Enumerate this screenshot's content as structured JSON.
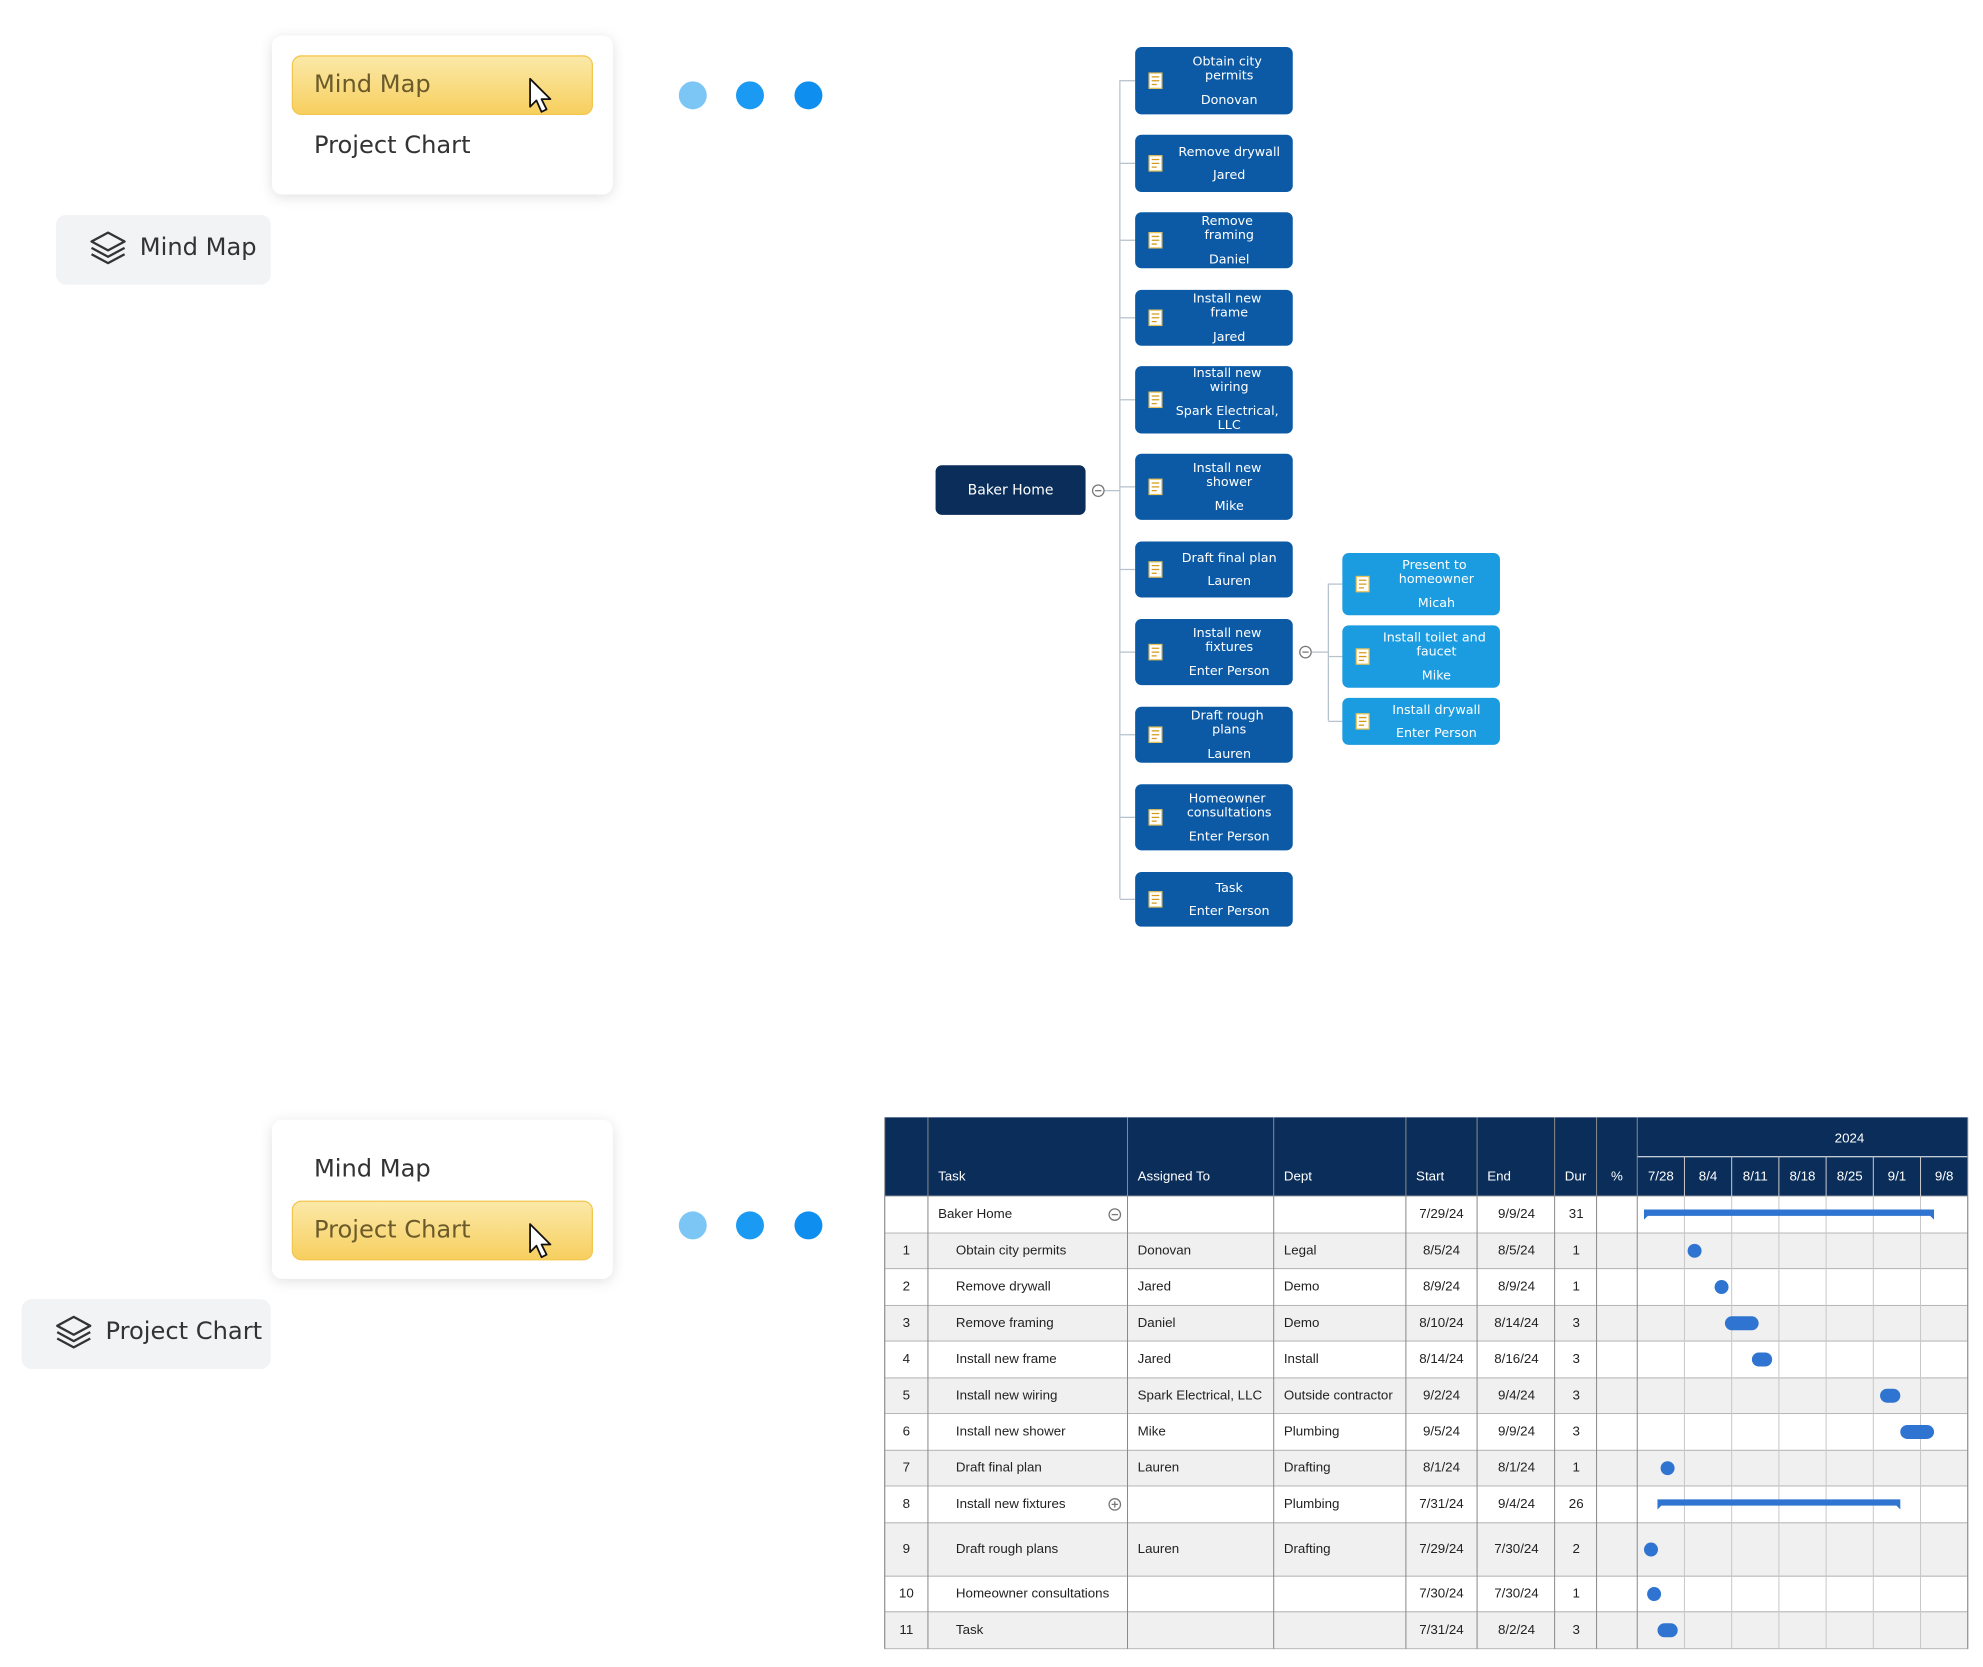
{
  "top_panel": {
    "menu": {
      "items": [
        "Mind Map",
        "Project Chart"
      ],
      "selected": 0
    },
    "button": "Mind Map"
  },
  "mind_map": {
    "root": "Baker Home",
    "nodes": [
      {
        "title": "Obtain city permits",
        "person": "Donovan"
      },
      {
        "title": "Remove drywall",
        "person": "Jared"
      },
      {
        "title": "Remove framing",
        "person": "Daniel"
      },
      {
        "title": "Install new frame",
        "person": "Jared"
      },
      {
        "title": "Install new wiring",
        "person": "Spark Electrical, LLC"
      },
      {
        "title": "Install new shower",
        "person": "Mike"
      },
      {
        "title": "Draft final plan",
        "person": "Lauren"
      },
      {
        "title": "Install new fixtures",
        "person": "Enter Person",
        "children": [
          {
            "title": "Present to homeowner",
            "person": "Micah"
          },
          {
            "title": "Install toilet and faucet",
            "person": "Mike"
          },
          {
            "title": "Install drywall",
            "person": "Enter Person"
          }
        ]
      },
      {
        "title": "Draft rough plans",
        "person": "Lauren"
      },
      {
        "title": "Homeowner consultations",
        "person": "Enter Person"
      },
      {
        "title": "Task",
        "person": "Enter Person"
      }
    ]
  },
  "bottom_panel": {
    "menu": {
      "items": [
        "Mind Map",
        "Project Chart"
      ],
      "selected": 1
    },
    "button": "Project Chart"
  },
  "project_chart": {
    "year": "2024",
    "columns": [
      "Task",
      "Assigned To",
      "Dept",
      "Start",
      "End",
      "Dur",
      "%"
    ],
    "weeks": [
      "7/28",
      "8/4",
      "8/11",
      "8/18",
      "8/25",
      "9/1",
      "9/8"
    ],
    "rows": [
      {
        "task": "Baker Home",
        "start": "7/29/24",
        "end": "9/9/24",
        "dur": 31,
        "group": true
      },
      {
        "id": 1,
        "task": "Obtain city permits",
        "assigned": "Donovan",
        "dept": "Legal",
        "start": "8/5/24",
        "end": "8/5/24",
        "dur": 1
      },
      {
        "id": 2,
        "task": "Remove drywall",
        "assigned": "Jared",
        "dept": "Demo",
        "start": "8/9/24",
        "end": "8/9/24",
        "dur": 1
      },
      {
        "id": 3,
        "task": "Remove framing",
        "assigned": "Daniel",
        "dept": "Demo",
        "start": "8/10/24",
        "end": "8/14/24",
        "dur": 3
      },
      {
        "id": 4,
        "task": "Install new frame",
        "assigned": "Jared",
        "dept": "Install",
        "start": "8/14/24",
        "end": "8/16/24",
        "dur": 3
      },
      {
        "id": 5,
        "task": "Install new wiring",
        "assigned": "Spark Electrical, LLC",
        "dept": "Outside contractor",
        "start": "9/2/24",
        "end": "9/4/24",
        "dur": 3
      },
      {
        "id": 6,
        "task": "Install new shower",
        "assigned": "Mike",
        "dept": "Plumbing",
        "start": "9/5/24",
        "end": "9/9/24",
        "dur": 3
      },
      {
        "id": 7,
        "task": "Draft final plan",
        "assigned": "Lauren",
        "dept": "Drafting",
        "start": "8/1/24",
        "end": "8/1/24",
        "dur": 1
      },
      {
        "id": 8,
        "task": "Install new fixtures",
        "dept": "Plumbing",
        "start": "7/31/24",
        "end": "9/4/24",
        "dur": 26,
        "group": true
      },
      {
        "id": 9,
        "task": "Draft rough plans",
        "assigned": "Lauren",
        "dept": "Drafting",
        "start": "7/29/24",
        "end": "7/30/24",
        "dur": 2
      },
      {
        "id": 10,
        "task": "Homeowner consultations",
        "start": "7/30/24",
        "end": "7/30/24",
        "dur": 1
      },
      {
        "id": 11,
        "task": "Task",
        "start": "7/31/24",
        "end": "8/2/24",
        "dur": 3
      }
    ]
  }
}
